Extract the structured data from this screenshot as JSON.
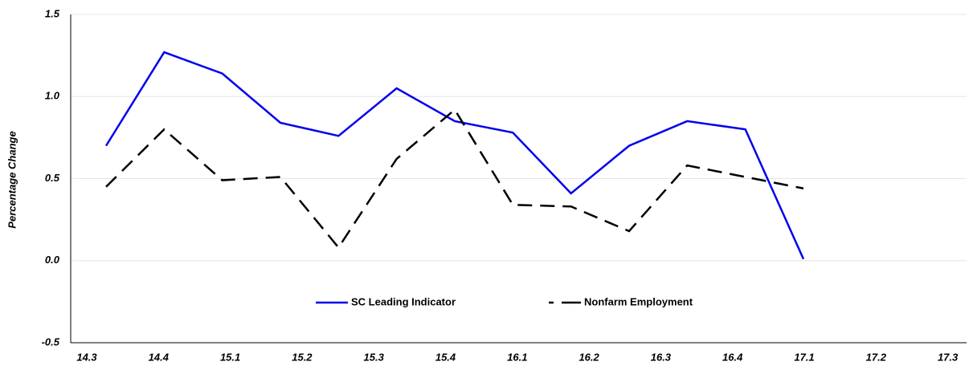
{
  "chart_data": {
    "type": "line",
    "ylabel": "Percentage Change",
    "categories": [
      "14.3",
      "14.4",
      "15.1",
      "15.2",
      "15.3",
      "15.4",
      "16.1",
      "16.2",
      "16.3",
      "16.4",
      "17.1",
      "17.2",
      "17.3"
    ],
    "series": [
      {
        "name": "SC Leading Indicator",
        "color": "#0000ee",
        "dash": false,
        "values": [
          0.7,
          1.27,
          1.14,
          0.84,
          0.76,
          1.05,
          0.85,
          0.78,
          0.41,
          0.7,
          0.85,
          0.8,
          0.01
        ]
      },
      {
        "name": "Nonfarm Employment",
        "color": "#000000",
        "dash": true,
        "values": [
          0.45,
          0.8,
          0.49,
          0.51,
          0.08,
          0.62,
          0.92,
          0.34,
          0.33,
          0.18,
          0.58,
          0.51,
          0.44
        ]
      }
    ],
    "ylim": [
      -0.5,
      1.5
    ],
    "yticks": [
      1.5,
      {
        "value": 1,
        "label": "1.0"
      },
      0.5,
      {
        "value": 0,
        "label": "0.0"
      },
      -0.5
    ],
    "grid": true
  }
}
